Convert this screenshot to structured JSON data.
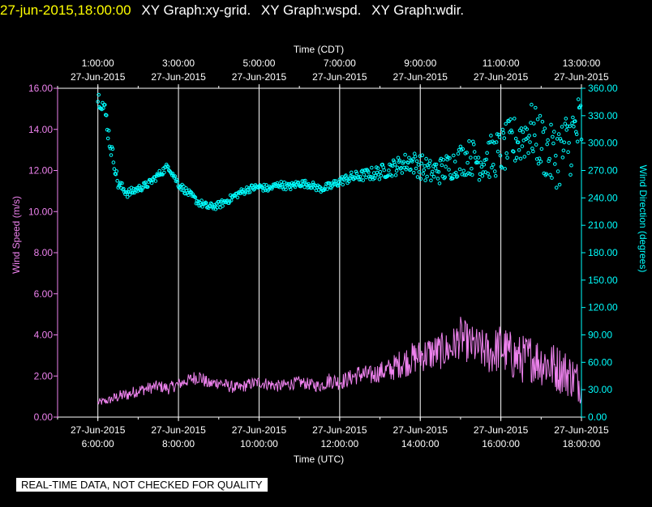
{
  "header": {
    "timestamp": "27-jun-2015,18:00:00",
    "graph_titles": [
      "XY Graph:xy-grid.",
      "XY Graph:wspd.",
      "XY Graph:wdir."
    ]
  },
  "colors": {
    "speed": "#ee82ee",
    "direction": "#00ffff",
    "grid": "#ffffff",
    "timestamp": "#ffff00"
  },
  "chart_data": {
    "type": "line",
    "top_axis_label": "Time (CDT)",
    "bottom_axis_label": "Time (UTC)",
    "left_axis_label": "Wind Speed (m/s)",
    "right_axis_label": "Wind Direction (degrees)",
    "x_range_utc_hours": [
      5.0,
      18.0
    ],
    "top_ticks": [
      {
        "hour": 6,
        "time": "1:00:00",
        "date": "27-Jun-2015"
      },
      {
        "hour": 8,
        "time": "3:00:00",
        "date": "27-Jun-2015"
      },
      {
        "hour": 10,
        "time": "5:00:00",
        "date": "27-Jun-2015"
      },
      {
        "hour": 12,
        "time": "7:00:00",
        "date": "27-Jun-2015"
      },
      {
        "hour": 14,
        "time": "9:00:00",
        "date": "27-Jun-2015"
      },
      {
        "hour": 16,
        "time": "11:00:00",
        "date": "27-Jun-2015"
      },
      {
        "hour": 18,
        "time": "13:00:00",
        "date": "27-Jun-2015"
      }
    ],
    "bottom_ticks": [
      {
        "hour": 6,
        "date": "27-Jun-2015",
        "time": "6:00:00"
      },
      {
        "hour": 8,
        "date": "27-Jun-2015",
        "time": "8:00:00"
      },
      {
        "hour": 10,
        "date": "27-Jun-2015",
        "time": "10:00:00"
      },
      {
        "hour": 12,
        "date": "27-Jun-2015",
        "time": "12:00:00"
      },
      {
        "hour": 14,
        "date": "27-Jun-2015",
        "time": "14:00:00"
      },
      {
        "hour": 16,
        "date": "27-Jun-2015",
        "time": "16:00:00"
      },
      {
        "hour": 18,
        "date": "27-Jun-2015",
        "time": "18:00:00"
      }
    ],
    "left_axis": {
      "min": 0,
      "max": 16,
      "ticks": [
        "0.00",
        "2.00",
        "4.00",
        "6.00",
        "8.00",
        "10.00",
        "12.00",
        "14.00",
        "16.00"
      ]
    },
    "right_axis": {
      "min": 0,
      "max": 360,
      "ticks": [
        "0.00",
        "30.00",
        "60.00",
        "90.00",
        "120.00",
        "150.00",
        "180.00",
        "210.00",
        "240.00",
        "270.00",
        "300.00",
        "330.00",
        "360.00"
      ]
    },
    "series": [
      {
        "name": "wspd",
        "axis": "left",
        "style": "line",
        "x": [
          6.0,
          6.25,
          6.5,
          6.75,
          7.0,
          7.25,
          7.5,
          7.75,
          8.0,
          8.25,
          8.5,
          8.75,
          9.0,
          9.25,
          9.5,
          9.75,
          10.0,
          10.25,
          10.5,
          10.75,
          11.0,
          11.25,
          11.5,
          11.75,
          12.0,
          12.25,
          12.5,
          12.75,
          13.0,
          13.25,
          13.5,
          13.75,
          14.0,
          14.25,
          14.5,
          14.75,
          15.0,
          15.25,
          15.5,
          15.75,
          16.0,
          16.25,
          16.5,
          16.75,
          17.0,
          17.25,
          17.5,
          17.75,
          18.0
        ],
        "values": [
          0.7,
          0.8,
          1.0,
          1.1,
          1.3,
          1.4,
          1.5,
          1.4,
          1.6,
          1.8,
          2.0,
          1.6,
          1.7,
          1.5,
          1.4,
          1.6,
          1.7,
          1.6,
          1.5,
          1.6,
          1.7,
          1.6,
          1.5,
          1.8,
          1.7,
          1.9,
          2.1,
          2.0,
          2.2,
          2.3,
          2.6,
          2.8,
          3.0,
          3.1,
          3.2,
          3.3,
          3.9,
          3.5,
          3.3,
          3.1,
          3.4,
          3.0,
          2.8,
          2.9,
          2.7,
          2.5,
          2.3,
          2.0,
          1.6
        ],
        "noise": [
          0.2,
          0.2,
          0.3,
          0.3,
          0.3,
          0.3,
          0.3,
          0.3,
          0.3,
          0.3,
          0.4,
          0.3,
          0.3,
          0.3,
          0.3,
          0.3,
          0.3,
          0.3,
          0.3,
          0.3,
          0.3,
          0.3,
          0.3,
          0.4,
          0.4,
          0.4,
          0.5,
          0.5,
          0.5,
          0.6,
          0.7,
          0.8,
          0.8,
          0.9,
          0.9,
          0.9,
          1.0,
          1.0,
          1.0,
          1.1,
          1.2,
          1.2,
          1.2,
          1.2,
          1.2,
          1.2,
          1.2,
          1.1,
          1.0
        ]
      },
      {
        "name": "wdir",
        "axis": "right",
        "style": "markers",
        "x": [
          6.0,
          6.1,
          6.2,
          6.3,
          6.4,
          6.5,
          6.75,
          7.0,
          7.25,
          7.5,
          7.75,
          8.0,
          8.25,
          8.5,
          8.75,
          9.0,
          9.25,
          9.5,
          9.75,
          10.0,
          10.25,
          10.5,
          10.75,
          11.0,
          11.25,
          11.5,
          11.75,
          12.0,
          12.25,
          12.5,
          12.75,
          13.0,
          13.25,
          13.5,
          13.75,
          14.0,
          14.25,
          14.5,
          14.75,
          15.0,
          15.25,
          15.5,
          15.75,
          16.0,
          16.25,
          16.5,
          16.75,
          17.0,
          17.25,
          17.5,
          17.75,
          18.0
        ],
        "values": [
          350,
          345,
          330,
          300,
          280,
          255,
          245,
          250,
          255,
          265,
          275,
          255,
          245,
          235,
          230,
          232,
          238,
          245,
          250,
          252,
          250,
          255,
          252,
          256,
          255,
          250,
          252,
          258,
          262,
          264,
          266,
          268,
          272,
          276,
          280,
          275,
          268,
          270,
          275,
          282,
          285,
          280,
          285,
          290,
          300,
          305,
          315,
          300,
          285,
          290,
          305,
          320
        ],
        "noise": [
          8,
          10,
          12,
          10,
          8,
          6,
          5,
          4,
          4,
          4,
          4,
          4,
          4,
          4,
          4,
          4,
          4,
          4,
          4,
          4,
          4,
          4,
          4,
          4,
          4,
          4,
          5,
          5,
          6,
          6,
          7,
          8,
          9,
          10,
          12,
          14,
          14,
          15,
          16,
          18,
          20,
          22,
          24,
          26,
          28,
          28,
          30,
          32,
          35,
          38,
          40,
          40
        ]
      }
    ]
  },
  "footer": {
    "disclaimer": "REAL-TIME DATA, NOT CHECKED FOR QUALITY"
  }
}
